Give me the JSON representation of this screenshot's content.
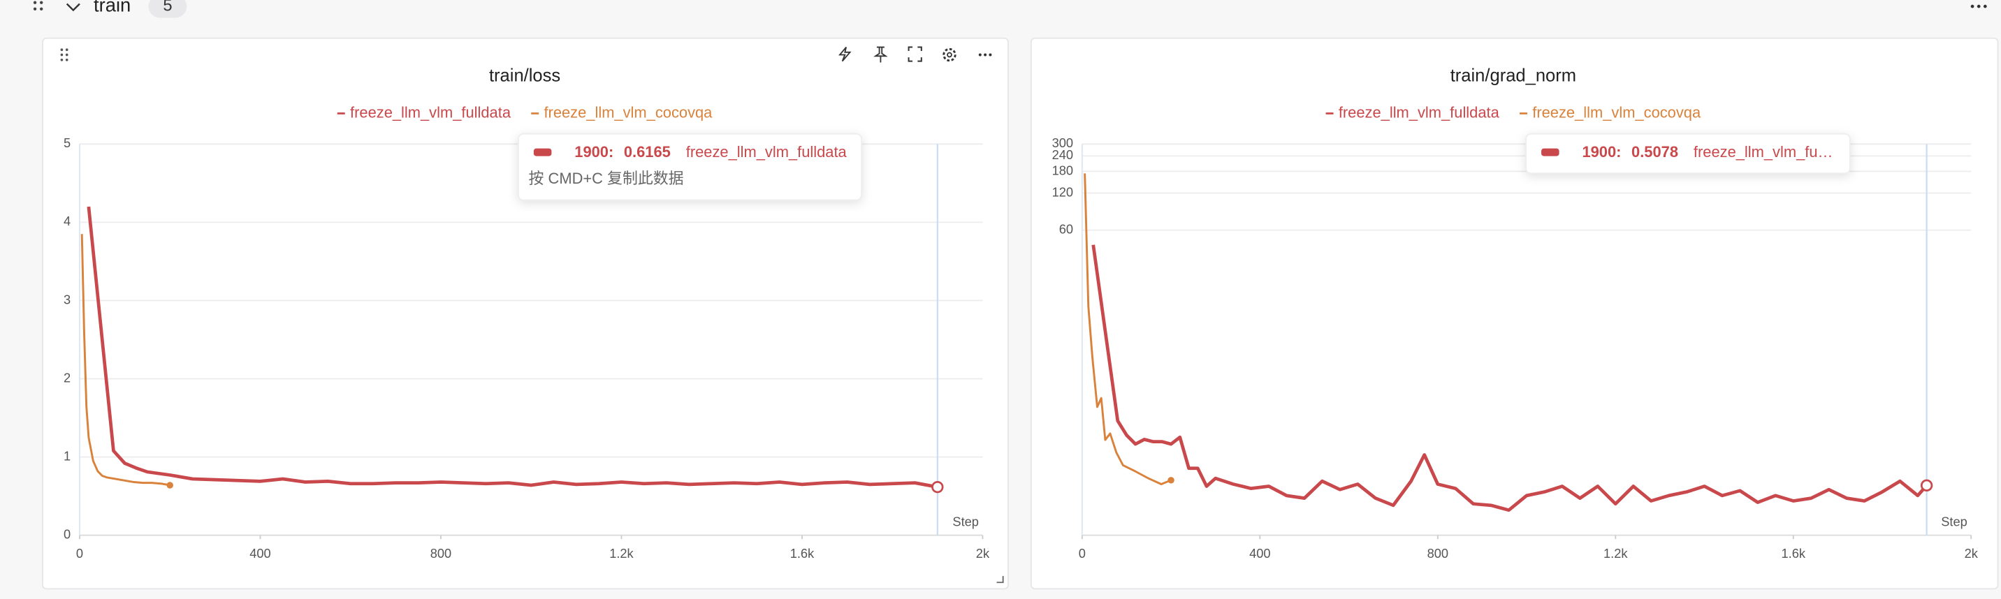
{
  "header": {
    "title": "train",
    "count": "5"
  },
  "chart_data": [
    {
      "type": "line",
      "title": "train/loss",
      "xlabel": "Step",
      "xlim": [
        0,
        2000
      ],
      "xticks": [
        0,
        400,
        800,
        {
          "value": 1200,
          "label": "1.2k"
        },
        {
          "value": 1600,
          "label": "1.6k"
        },
        {
          "value": 2000,
          "label": "2k"
        }
      ],
      "ylim": [
        0,
        5
      ],
      "yticks": [
        0,
        1,
        2,
        3,
        4,
        5
      ],
      "grid": true,
      "log": false,
      "series": [
        {
          "name": "freeze_llm_vlm_fulldata",
          "color": "#c9484b",
          "x": [
            20,
            75,
            100,
            125,
            150,
            200,
            250,
            300,
            350,
            400,
            450,
            500,
            550,
            600,
            650,
            700,
            750,
            800,
            850,
            900,
            950,
            1000,
            1050,
            1100,
            1150,
            1200,
            1250,
            1300,
            1350,
            1400,
            1450,
            1500,
            1550,
            1600,
            1650,
            1700,
            1750,
            1800,
            1850,
            1900
          ],
          "values": [
            4.2,
            1.08,
            0.92,
            0.86,
            0.81,
            0.77,
            0.72,
            0.71,
            0.7,
            0.69,
            0.72,
            0.68,
            0.69,
            0.66,
            0.66,
            0.67,
            0.67,
            0.68,
            0.67,
            0.66,
            0.67,
            0.64,
            0.68,
            0.65,
            0.66,
            0.68,
            0.66,
            0.67,
            0.65,
            0.66,
            0.67,
            0.66,
            0.68,
            0.65,
            0.67,
            0.68,
            0.65,
            0.66,
            0.67,
            0.6165
          ]
        },
        {
          "name": "freeze_llm_vlm_cocovqa",
          "color": "#d9823b",
          "x": [
            5,
            10,
            15,
            20,
            30,
            40,
            50,
            60,
            80,
            100,
            120,
            140,
            160,
            180,
            200
          ],
          "values": [
            3.85,
            2.6,
            1.65,
            1.25,
            0.95,
            0.82,
            0.76,
            0.74,
            0.72,
            0.7,
            0.68,
            0.67,
            0.67,
            0.66,
            0.64
          ]
        }
      ],
      "tooltip": {
        "step": "1900:",
        "value": 0.6165,
        "series": "freeze_llm_vlm_fulldata",
        "hint": "按 CMD+C 复制此数据"
      }
    },
    {
      "type": "line",
      "title": "train/grad_norm",
      "xlabel": "Step",
      "xlim": [
        0,
        2000
      ],
      "xticks": [
        0,
        400,
        800,
        {
          "value": 1200,
          "label": "1.2k"
        },
        {
          "value": 1600,
          "label": "1.6k"
        },
        {
          "value": 2000,
          "label": "2k"
        }
      ],
      "ylim": [
        0.2,
        300
      ],
      "yticks": [
        60,
        120,
        180,
        240,
        300
      ],
      "grid": true,
      "log": true,
      "series": [
        {
          "name": "freeze_llm_vlm_fulldata",
          "color": "#c9484b",
          "x": [
            25,
            80,
            100,
            120,
            140,
            160,
            180,
            200,
            220,
            240,
            260,
            280,
            300,
            340,
            380,
            420,
            460,
            500,
            540,
            580,
            620,
            660,
            700,
            740,
            770,
            800,
            840,
            880,
            920,
            960,
            1000,
            1040,
            1080,
            1120,
            1160,
            1200,
            1240,
            1280,
            1320,
            1360,
            1400,
            1440,
            1480,
            1520,
            1560,
            1600,
            1640,
            1680,
            1720,
            1760,
            1800,
            1840,
            1880,
            1900
          ],
          "values": [
            45.6,
            1.7,
            1.3,
            1.1,
            1.2,
            1.15,
            1.15,
            1.1,
            1.25,
            0.7,
            0.7,
            0.5,
            0.58,
            0.52,
            0.48,
            0.5,
            0.42,
            0.4,
            0.55,
            0.47,
            0.52,
            0.4,
            0.35,
            0.55,
            0.9,
            0.52,
            0.48,
            0.36,
            0.35,
            0.32,
            0.42,
            0.45,
            0.5,
            0.4,
            0.5,
            0.36,
            0.5,
            0.38,
            0.42,
            0.45,
            0.5,
            0.42,
            0.46,
            0.37,
            0.42,
            0.38,
            0.4,
            0.47,
            0.4,
            0.38,
            0.45,
            0.55,
            0.42,
            0.5078
          ]
        },
        {
          "name": "freeze_llm_vlm_cocovqa",
          "color": "#d9823b",
          "x": [
            6,
            14,
            23,
            34,
            43,
            52,
            63,
            77,
            92,
            120,
            149,
            178,
            200
          ],
          "values": [
            173,
            14.5,
            5.6,
            2.2,
            2.6,
            1.19,
            1.34,
            0.94,
            0.74,
            0.66,
            0.58,
            0.52,
            0.56
          ]
        }
      ],
      "tooltip": {
        "step": "1900:",
        "value": 0.5078,
        "series": "freeze_llm_vlm_fu…"
      }
    }
  ]
}
